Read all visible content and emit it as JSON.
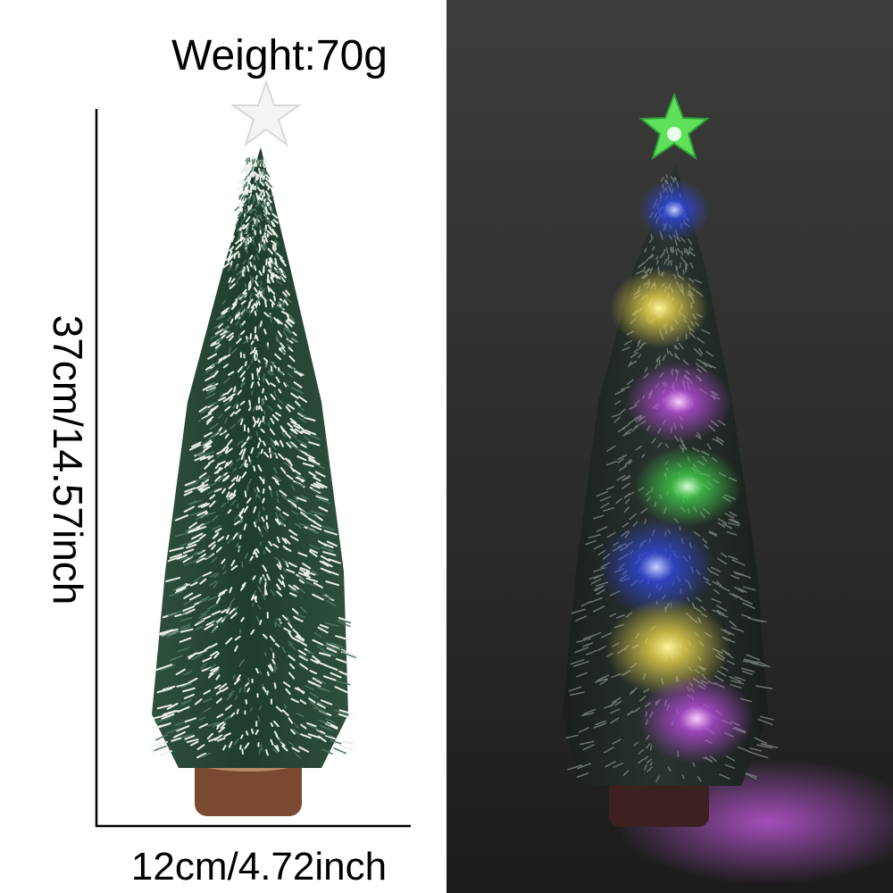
{
  "weight_label": "Weight:70g",
  "height_label": "37cm/14.57inch",
  "width_label": "12cm/4.72inch"
}
